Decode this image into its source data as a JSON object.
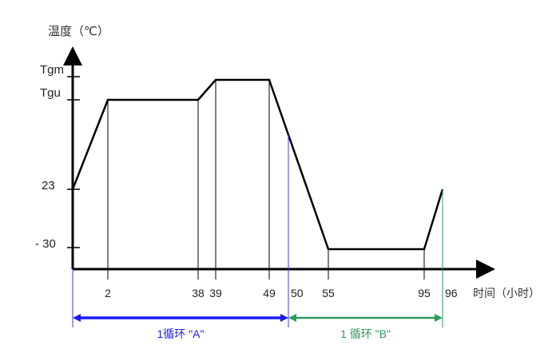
{
  "chart_data": {
    "type": "line",
    "ylabel": "温度（℃）",
    "xlabel": "时间（小时）",
    "x_ticks": [
      "2",
      "38",
      "39",
      "49",
      "50",
      "55",
      "95",
      "96"
    ],
    "y_ticks": [
      "Tgm",
      "Tgu",
      "23",
      "- 30"
    ],
    "points": [
      {
        "time": 0,
        "temp": "23"
      },
      {
        "time": 2,
        "temp": "Tgu"
      },
      {
        "time": 38,
        "temp": "Tgu"
      },
      {
        "time": 39,
        "temp": "Tgm"
      },
      {
        "time": 49,
        "temp": "Tgm"
      },
      {
        "time": 55,
        "temp": "-30"
      },
      {
        "time": 95,
        "temp": "-30"
      },
      {
        "time": 96,
        "temp": "23"
      }
    ],
    "cycles": [
      {
        "label": "1循环 \"A\"",
        "from": 0,
        "to": 50,
        "color": "#1a1aff"
      },
      {
        "label": "1 循环 \"B\"",
        "from": 50,
        "to": 96,
        "color": "#2e9a5a"
      }
    ]
  }
}
